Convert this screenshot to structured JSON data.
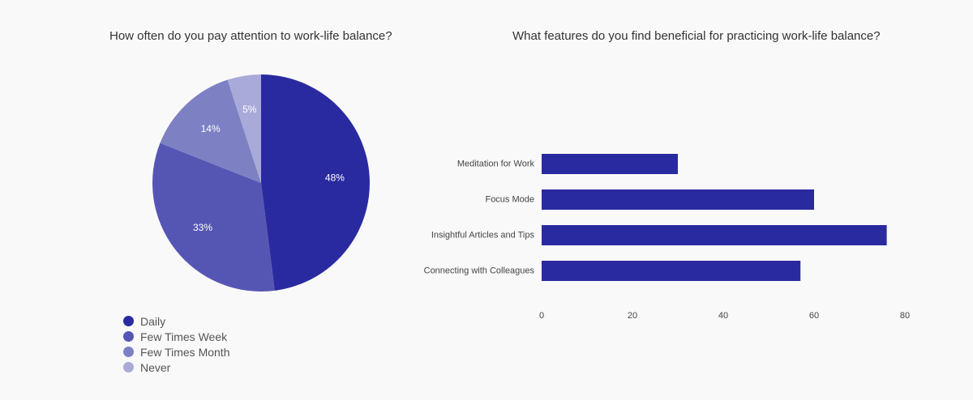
{
  "colors": {
    "background": "#f9f9f9",
    "title": "#333333",
    "slice_label": "#ffffff",
    "bar": "#2a2aa0"
  },
  "chart_data": [
    {
      "type": "pie",
      "title": "How often do you pay attention to work-life balance?",
      "slices": [
        {
          "name": "Daily",
          "value": 48,
          "label": "48%",
          "color": "#2a2aa0"
        },
        {
          "name": "Few Times Week",
          "value": 33,
          "label": "33%",
          "color": "#5556b4"
        },
        {
          "name": "Few Times Month",
          "value": 14,
          "label": "14%",
          "color": "#7e80c4"
        },
        {
          "name": "Never",
          "value": 5,
          "label": "5%",
          "color": "#a9aada"
        }
      ],
      "start": "12 o'clock",
      "direction": "clockwise",
      "legend_position": "bottom-left"
    },
    {
      "type": "bar",
      "orientation": "horizontal",
      "title": "What features do you find beneficial for practicing work-life balance?",
      "categories": [
        "Meditation for Work",
        "Focus Mode",
        "Insightful Articles and Tips",
        "Connecting with Colleagues"
      ],
      "values": [
        30,
        60,
        76,
        57
      ],
      "xlim": [
        0,
        80
      ],
      "xticks": [
        0,
        20,
        40,
        60,
        80
      ],
      "grid": false,
      "legend": false,
      "color": "#2a2aa0"
    }
  ]
}
